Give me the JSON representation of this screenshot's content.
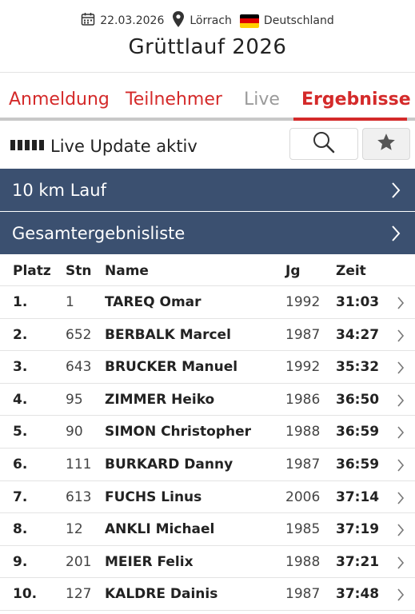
{
  "event": {
    "date": "22.03.2026",
    "location": "Lörrach",
    "country": "Deutschland",
    "title": "Grüttlauf 2026"
  },
  "tabs": [
    {
      "label": "Anmeldung",
      "state": "normal"
    },
    {
      "label": "Teilnehmer",
      "state": "normal"
    },
    {
      "label": "Live",
      "state": "inactive"
    },
    {
      "label": "Ergebnisse",
      "state": "active"
    }
  ],
  "live": {
    "status_text": "Live Update aktiv"
  },
  "selectors": {
    "race": "10 km Lauf",
    "list": "Gesamtergebnisliste"
  },
  "table": {
    "headers": {
      "platz": "Platz",
      "stn": "Stn",
      "name": "Name",
      "jg": "Jg",
      "zeit": "Zeit"
    },
    "rows": [
      {
        "platz": "1.",
        "stn": "1",
        "name": "TAREQ Omar",
        "jg": "1992",
        "zeit": "31:03"
      },
      {
        "platz": "2.",
        "stn": "652",
        "name": "BERBALK Marcel",
        "jg": "1987",
        "zeit": "34:27"
      },
      {
        "platz": "3.",
        "stn": "643",
        "name": "BRUCKER Manuel",
        "jg": "1992",
        "zeit": "35:32"
      },
      {
        "platz": "4.",
        "stn": "95",
        "name": "ZIMMER Heiko",
        "jg": "1986",
        "zeit": "36:50"
      },
      {
        "platz": "5.",
        "stn": "90",
        "name": "SIMON Christopher",
        "jg": "1988",
        "zeit": "36:59"
      },
      {
        "platz": "6.",
        "stn": "111",
        "name": "BURKARD Danny",
        "jg": "1987",
        "zeit": "36:59"
      },
      {
        "platz": "7.",
        "stn": "613",
        "name": "FUCHS Linus",
        "jg": "2006",
        "zeit": "37:14"
      },
      {
        "platz": "8.",
        "stn": "12",
        "name": "ANKLI Michael",
        "jg": "1985",
        "zeit": "37:19"
      },
      {
        "platz": "9.",
        "stn": "201",
        "name": "MEIER Felix",
        "jg": "1988",
        "zeit": "37:21"
      },
      {
        "platz": "10.",
        "stn": "127",
        "name": "KALDRE Dainis",
        "jg": "1987",
        "zeit": "37:48"
      }
    ]
  },
  "colors": {
    "accent": "#d42a2a",
    "bar": "#3b5070",
    "flag": [
      "#000000",
      "#dd0000",
      "#ffce00"
    ]
  },
  "icons": {
    "date": "calendar-icon",
    "location": "map-pin-icon",
    "country": "germany-flag-icon",
    "live": "signal-bars-icon",
    "search": "search-icon",
    "favorite": "star-icon",
    "row": "chevron-right-icon"
  }
}
